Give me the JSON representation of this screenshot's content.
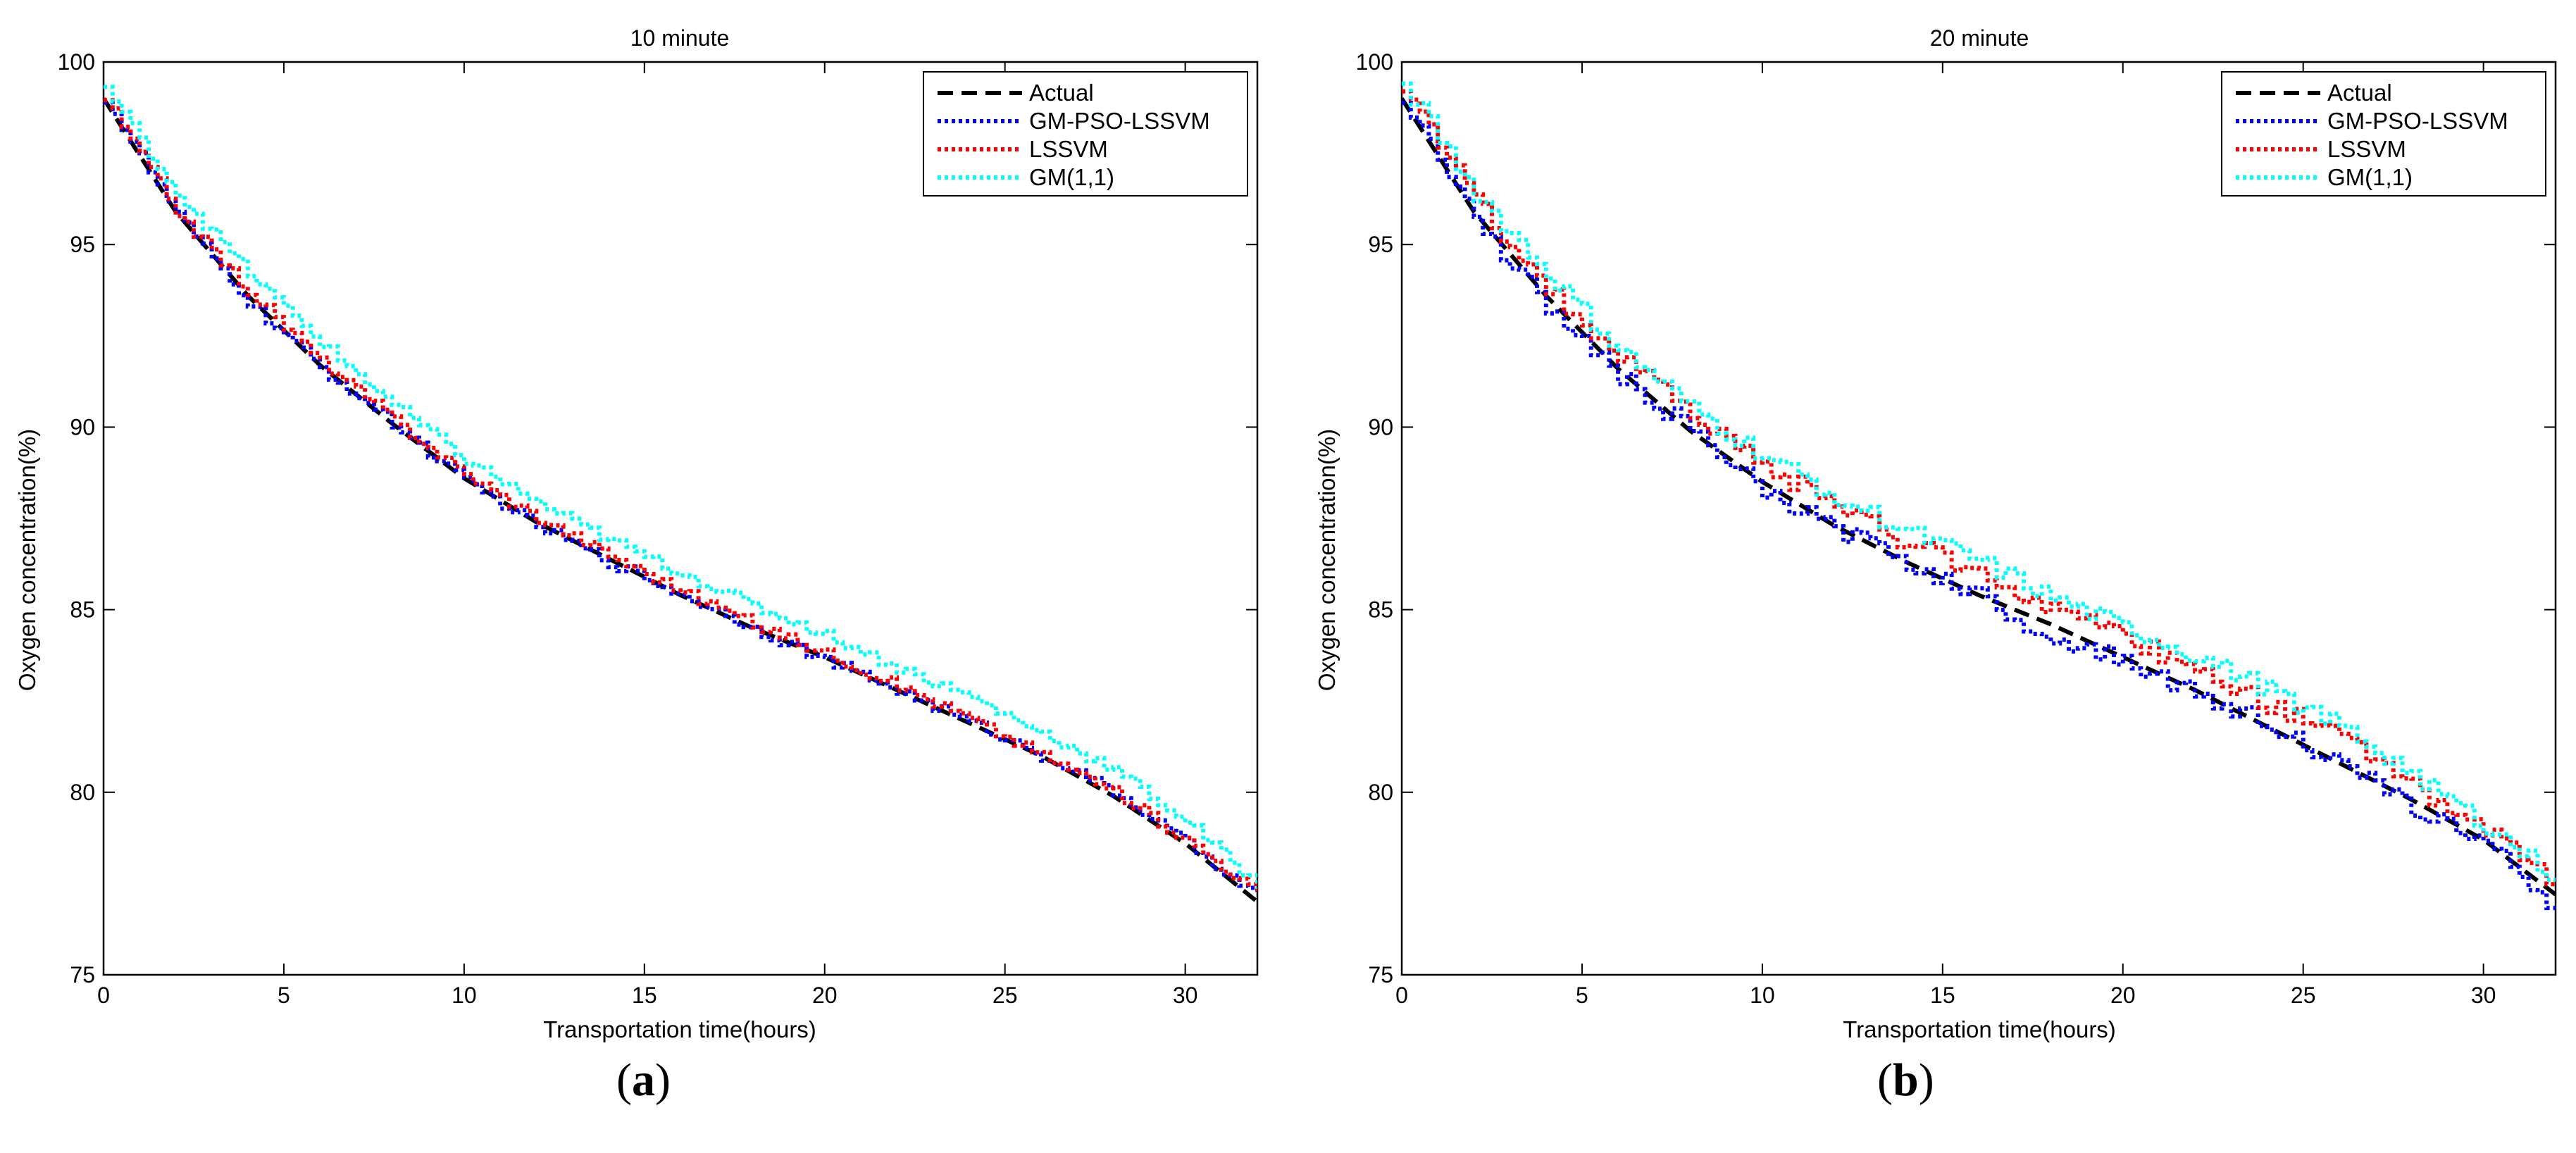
{
  "chart_data": [
    {
      "type": "line",
      "panel_label": "a",
      "title": "10 minute",
      "xlabel": "Transportation time(hours)",
      "ylabel": "Oxygen concentration(%)",
      "xlim": [
        0,
        32
      ],
      "ylim": [
        75,
        100
      ],
      "xticks": [
        0,
        5,
        10,
        15,
        20,
        25,
        30
      ],
      "yticks": [
        75,
        80,
        85,
        90,
        95,
        100
      ],
      "grid": false,
      "legend_position": "top-right",
      "x": [
        0,
        2,
        4,
        6,
        8,
        10,
        12,
        14,
        16,
        18,
        20,
        22,
        24,
        26,
        28,
        30,
        32
      ],
      "series": [
        {
          "name": "Actual",
          "color": "#000000",
          "style": "dashed",
          "noise": 0,
          "values": [
            99.0,
            95.9,
            93.6,
            91.7,
            90.1,
            88.6,
            87.4,
            86.4,
            85.4,
            84.5,
            83.7,
            82.8,
            81.9,
            81.0,
            79.9,
            78.6,
            77.0
          ]
        },
        {
          "name": "GM-PSO-LSSVM",
          "color": "#0000ff",
          "style": "dotted",
          "noise": 0.14,
          "values": [
            99.0,
            95.8,
            93.4,
            91.6,
            90.1,
            88.5,
            87.3,
            86.3,
            85.4,
            84.5,
            83.6,
            82.8,
            81.9,
            81.0,
            80.0,
            78.6,
            77.1
          ]
        },
        {
          "name": "LSSVM",
          "color": "#ff0000",
          "style": "dotted",
          "noise": 0.14,
          "values": [
            99.0,
            95.9,
            93.7,
            91.8,
            90.2,
            88.7,
            87.5,
            86.5,
            85.5,
            84.6,
            83.8,
            82.9,
            82.0,
            81.0,
            80.0,
            78.7,
            77.2
          ]
        },
        {
          "name": "GM(1,1)",
          "color": "#00ffff",
          "style": "dotted",
          "noise": 0.14,
          "values": [
            99.3,
            96.4,
            94.2,
            92.3,
            90.6,
            89.1,
            87.9,
            86.9,
            86.0,
            85.1,
            84.3,
            83.4,
            82.6,
            81.6,
            80.6,
            79.2,
            77.4
          ]
        }
      ]
    },
    {
      "type": "line",
      "panel_label": "b",
      "title": "20 minute",
      "xlabel": "Transportation time(hours)",
      "ylabel": "Oxygen concentration(%)",
      "xlim": [
        0,
        32
      ],
      "ylim": [
        75,
        100
      ],
      "xticks": [
        0,
        5,
        10,
        15,
        20,
        25,
        30
      ],
      "yticks": [
        75,
        80,
        85,
        90,
        95,
        100
      ],
      "grid": false,
      "legend_position": "top-right",
      "x": [
        0,
        2,
        4,
        6,
        8,
        10,
        12,
        14,
        16,
        18,
        20,
        22,
        24,
        26,
        28,
        30,
        32
      ],
      "series": [
        {
          "name": "Actual",
          "color": "#000000",
          "style": "dashed",
          "noise": 0,
          "values": [
            99.0,
            95.9,
            93.6,
            91.6,
            89.9,
            88.5,
            87.3,
            86.3,
            85.4,
            84.6,
            83.7,
            82.8,
            81.8,
            80.8,
            79.8,
            78.7,
            77.2
          ]
        },
        {
          "name": "GM-PSO-LSSVM",
          "color": "#0000ff",
          "style": "dotted",
          "noise": 0.25,
          "values": [
            99.1,
            95.7,
            93.3,
            91.4,
            89.9,
            88.2,
            87.2,
            86.3,
            85.4,
            84.2,
            83.6,
            82.7,
            81.9,
            80.7,
            79.6,
            78.6,
            76.8
          ]
        },
        {
          "name": "LSSVM",
          "color": "#ff0000",
          "style": "dotted",
          "noise": 0.25,
          "values": [
            99.3,
            96.2,
            93.8,
            91.9,
            90.4,
            88.9,
            87.9,
            86.8,
            86.0,
            85.0,
            84.2,
            83.4,
            82.4,
            81.5,
            80.2,
            78.9,
            77.5
          ]
        },
        {
          "name": "GM(1,1)",
          "color": "#00ffff",
          "style": "dotted",
          "noise": 0.25,
          "values": [
            99.4,
            96.4,
            94.2,
            92.1,
            90.5,
            89.2,
            88.1,
            87.1,
            86.3,
            85.3,
            84.5,
            83.7,
            82.8,
            81.8,
            80.5,
            79.1,
            77.6
          ]
        }
      ]
    }
  ]
}
